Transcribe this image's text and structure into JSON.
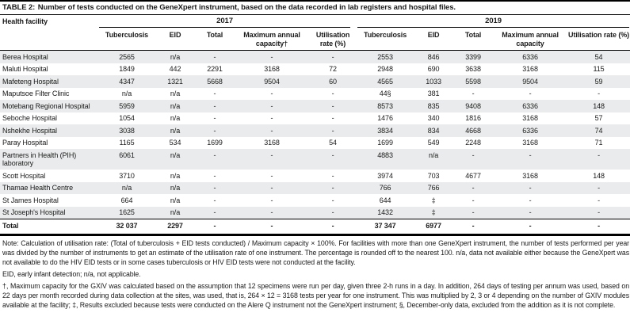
{
  "page": {
    "background_color": "#ffffff",
    "text_color": "#1a1a1a",
    "stripe_color": "#eaebec"
  },
  "table": {
    "title_label": "TABLE 2:",
    "title_text": "Number of tests conducted on the GeneXpert instrument, based on the data recorded in lab registers and hospital files.",
    "facility_header": "Health facility",
    "year_groups": [
      "2017",
      "2019"
    ],
    "sub_headers": [
      "Tuberculosis",
      "EID",
      "Total",
      "Maximum annual capacity†",
      "Utilisation rate (%)",
      "Tuberculosis",
      "EID",
      "Total",
      "Maximum annual capacity",
      "Utilisation rate (%)"
    ],
    "rows": [
      [
        "Berea Hospital",
        "2565",
        "n/a",
        "-",
        "-",
        "-",
        "2553",
        "846",
        "3399",
        "6336",
        "54"
      ],
      [
        "Maluti Hospital",
        "1849",
        "442",
        "2291",
        "3168",
        "72",
        "2948",
        "690",
        "3638",
        "3168",
        "115"
      ],
      [
        "Mafeteng Hospital",
        "4347",
        "1321",
        "5668",
        "9504",
        "60",
        "4565",
        "1033",
        "5598",
        "9504",
        "59"
      ],
      [
        "Maputsoe Filter Clinic",
        "n/a",
        "n/a",
        "-",
        "-",
        "-",
        "44§",
        "381",
        "-",
        "-",
        "-"
      ],
      [
        "Motebang Regional Hospital",
        "5959",
        "n/a",
        "-",
        "-",
        "-",
        "8573",
        "835",
        "9408",
        "6336",
        "148"
      ],
      [
        "Seboche Hospital",
        "1054",
        "n/a",
        "-",
        "-",
        "-",
        "1476",
        "340",
        "1816",
        "3168",
        "57"
      ],
      [
        "Nshekhe Hospital",
        "3038",
        "n/a",
        "-",
        "-",
        "-",
        "3834",
        "834",
        "4668",
        "6336",
        "74"
      ],
      [
        "Paray Hospital",
        "1165",
        "534",
        "1699",
        "3168",
        "54",
        "1699",
        "549",
        "2248",
        "3168",
        "71"
      ],
      [
        "Partners in Health (PIH) laboratory",
        "6061",
        "n/a",
        "-",
        "-",
        "-",
        "4883",
        "n/a",
        "-",
        "-",
        "-"
      ],
      [
        "Scott Hospital",
        "3710",
        "n/a",
        "-",
        "-",
        "-",
        "3974",
        "703",
        "4677",
        "3168",
        "148"
      ],
      [
        "Thamae Health Centre",
        "n/a",
        "n/a",
        "-",
        "-",
        "-",
        "766",
        "766",
        "-",
        "-",
        "-"
      ],
      [
        "St James Hospital",
        "664",
        "n/a",
        "-",
        "-",
        "-",
        "644",
        "‡",
        "-",
        "-",
        "-"
      ],
      [
        "St Joseph's Hospital",
        "1625",
        "n/a",
        "-",
        "-",
        "-",
        "1432",
        "‡",
        "-",
        "-",
        "-"
      ]
    ],
    "total_row": [
      "Total",
      "32 037",
      "2297",
      "-",
      "-",
      "-",
      "37 347",
      "6977",
      "-",
      "-",
      "-"
    ]
  },
  "notes": {
    "note_general": "Note: Calculation of utilisation rate: (Total of tuberculosis + EID tests conducted) / Maximum capacity × 100%. For facilities with more than one GeneXpert instrument, the number of tests performed per year was divided by the number of instruments to get an estimate of the utilisation rate of one instrument. The percentage is rounded off to the nearest 100. n/a, data not available either because the GeneXpert was not available to do the HIV EID tests or in some cases tuberculosis or HIV EID tests were not conducted at the facility.",
    "note_abbreviations": "EID, early infant detection; n/a, not applicable.",
    "note_symbols": "†, Maximum capacity for the GXIV was calculated based on the assumption that 12 specimens were run per day, given three 2-h runs in a day. In addition, 264 days of testing per annum was used, based on 22 days per month recorded during data collection at the sites, was used, that is, 264 × 12 = 3168 tests per year for one instrument. This was multiplied by 2, 3 or 4 depending on the number of GXIV modules available at the facility; ‡, Results excluded because tests were conducted on the Alere Q instrument not the GeneXpert instrument; §, December-only data, excluded from the addition as it is not complete."
  }
}
